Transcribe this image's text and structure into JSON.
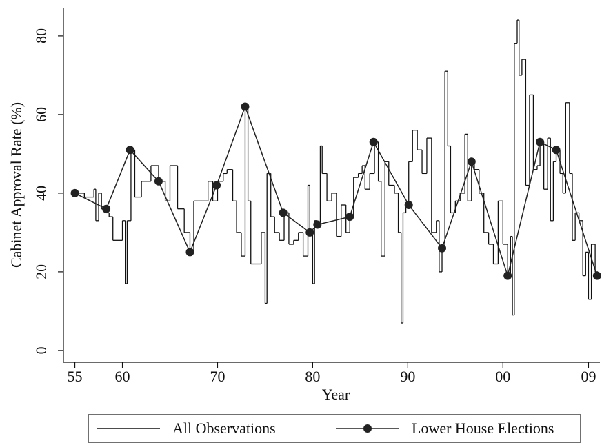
{
  "chart_data": {
    "type": "line",
    "x_label": "Year",
    "y_label": "Cabinet Approval Rate (%)",
    "xlim": [
      1953.8,
      2010.2
    ],
    "ylim": [
      -3,
      87
    ],
    "xticks": [
      {
        "value": 1955,
        "label": "55"
      },
      {
        "value": 1960,
        "label": "60"
      },
      {
        "value": 1970,
        "label": "70"
      },
      {
        "value": 1980,
        "label": "80"
      },
      {
        "value": 1990,
        "label": "90"
      },
      {
        "value": 2000,
        "label": "00"
      },
      {
        "value": 2009,
        "label": "09"
      }
    ],
    "yticks": [
      0,
      20,
      40,
      60,
      80
    ],
    "legend": "bottom",
    "series": [
      {
        "name": "All Observations",
        "color": "#111111",
        "step": true,
        "x": [
          1955.0,
          1956.0,
          1957.0,
          1957.2,
          1957.5,
          1957.8,
          1958.3,
          1958.6,
          1959.0,
          1960.0,
          1960.3,
          1960.5,
          1960.9,
          1961.3,
          1962.0,
          1963.0,
          1963.8,
          1964.5,
          1965.0,
          1965.8,
          1966.5,
          1967.1,
          1967.5,
          1968.5,
          1969.0,
          1969.5,
          1970.0,
          1970.6,
          1971.0,
          1971.6,
          1972.0,
          1972.5,
          1972.9,
          1973.2,
          1973.5,
          1974.0,
          1974.6,
          1975.0,
          1975.2,
          1975.6,
          1976.0,
          1976.5,
          1977.0,
          1977.5,
          1978.0,
          1978.5,
          1979.0,
          1979.5,
          1979.7,
          1980.0,
          1980.2,
          1980.5,
          1980.8,
          1981.0,
          1981.5,
          1982.0,
          1982.5,
          1983.0,
          1983.5,
          1983.9,
          1984.3,
          1984.8,
          1985.2,
          1985.5,
          1986.0,
          1986.5,
          1986.9,
          1987.2,
          1987.6,
          1988.0,
          1988.6,
          1989.0,
          1989.3,
          1989.5,
          1989.8,
          1990.1,
          1990.5,
          1991.0,
          1991.5,
          1992.0,
          1992.5,
          1993.0,
          1993.3,
          1993.6,
          1993.9,
          1994.2,
          1994.5,
          1995.0,
          1995.5,
          1996.0,
          1996.3,
          1996.7,
          1997.0,
          1997.5,
          1998.0,
          1998.5,
          1999.0,
          1999.5,
          2000.0,
          2000.5,
          2000.8,
          2001.0,
          2001.2,
          2001.5,
          2001.7,
          2002.0,
          2002.4,
          2002.8,
          2003.2,
          2003.6,
          2003.9,
          2004.3,
          2004.7,
          2005.0,
          2005.3,
          2005.6,
          2006.0,
          2006.3,
          2006.6,
          2007.0,
          2007.3,
          2007.6,
          2008.0,
          2008.4,
          2008.7,
          2009.0,
          2009.3,
          2009.7
        ],
        "values": [
          40,
          39,
          41,
          33,
          40,
          36,
          35,
          34,
          28,
          33,
          17,
          33,
          51,
          39,
          43,
          47,
          43,
          38,
          47,
          36,
          30,
          25,
          38,
          38,
          43,
          38,
          43,
          45,
          46,
          38,
          30,
          24,
          62,
          38,
          22,
          22,
          30,
          12,
          45,
          34,
          30,
          28,
          35,
          27,
          28,
          30,
          24,
          42,
          30,
          17,
          33,
          32,
          52,
          45,
          38,
          40,
          29,
          37,
          30,
          34,
          44,
          45,
          47,
          41,
          45,
          53,
          43,
          24,
          48,
          42,
          40,
          30,
          7,
          35,
          37,
          48,
          56,
          51,
          45,
          54,
          30,
          33,
          20,
          26,
          71,
          52,
          35,
          38,
          40,
          55,
          38,
          48,
          46,
          40,
          30,
          27,
          22,
          38,
          27,
          19,
          29,
          9,
          78,
          84,
          70,
          74,
          42,
          65,
          46,
          47,
          53,
          41,
          54,
          33,
          48,
          51,
          45,
          40,
          63,
          45,
          28,
          35,
          33,
          19,
          25,
          13,
          27,
          20
        ]
      },
      {
        "name": "Lower House Elections",
        "color": "#222222",
        "step": false,
        "x": [
          1955.0,
          1958.3,
          1960.8,
          1963.8,
          1967.1,
          1969.9,
          1972.9,
          1976.9,
          1979.7,
          1980.5,
          1983.9,
          1986.4,
          1990.1,
          1993.6,
          1996.7,
          2000.5,
          2003.9,
          2005.6,
          2009.9
        ],
        "values": [
          40,
          36,
          51,
          43,
          25,
          42,
          62,
          35,
          30,
          32,
          34,
          53,
          37,
          26,
          48,
          19,
          53,
          51,
          19
        ]
      }
    ]
  }
}
